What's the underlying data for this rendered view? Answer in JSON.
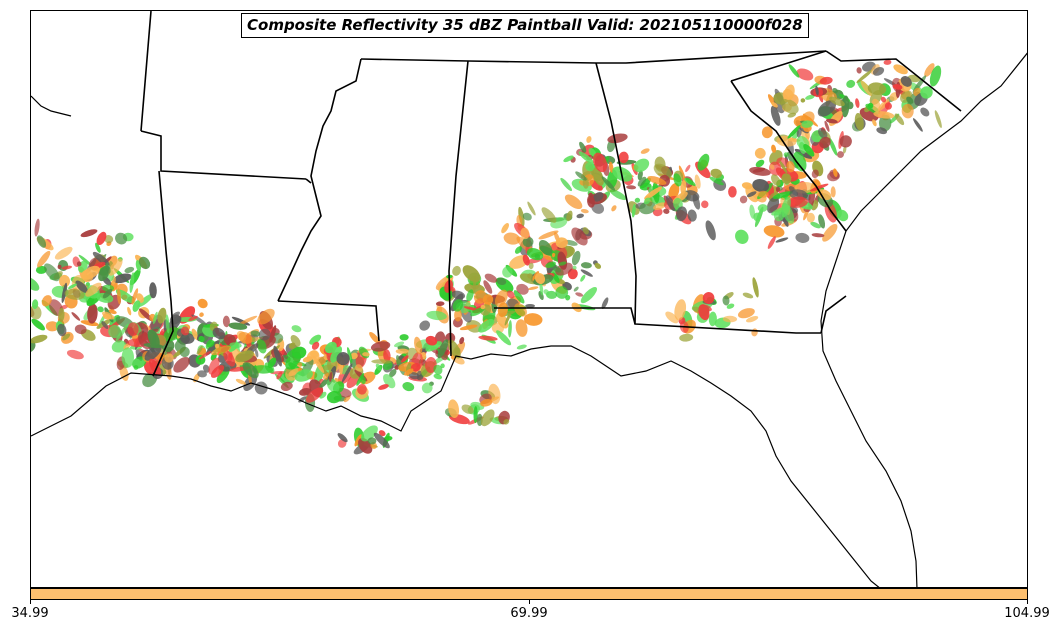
{
  "title": "Composite Reflectivity 35 dBZ Paintball Valid: 202105110000f028",
  "colorbar": {
    "color": "#fdbf6f",
    "ticks": [
      "34.99",
      "69.99",
      "104.99"
    ]
  },
  "colors": {
    "red": "#f03c3c",
    "dark_red": "#a83c3c",
    "orange": "#f7952a",
    "light_orange": "#fbb452",
    "green": "#2ccc2c",
    "light_green": "#5ce05c",
    "dark_green": "#4a8f44",
    "olive": "#9ca43a",
    "gray": "#5a5a5a"
  }
}
